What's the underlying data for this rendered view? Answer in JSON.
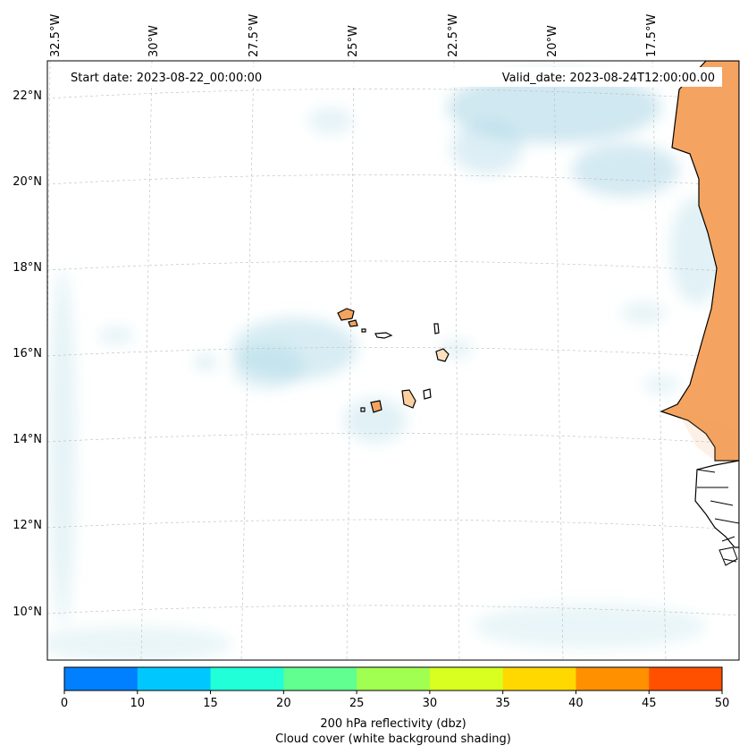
{
  "header": {
    "start_date": "Start date: 2023-08-22_00:00:00",
    "valid_date": "Valid_date: 2023-08-24T12:00:00.00"
  },
  "map": {
    "lon_labels": [
      "32.5°W",
      "30°W",
      "27.5°W",
      "25°W",
      "22.5°W",
      "20°W",
      "17.5°W"
    ],
    "lat_labels": [
      "22°N",
      "20°N",
      "18°N",
      "16°N",
      "14°N",
      "12°N",
      "10°N"
    ],
    "colors": {
      "land": "#f4a460",
      "cloud": "#a9d6e5",
      "coast": "#000000"
    }
  },
  "colorbar": {
    "ticks": [
      "0",
      "10",
      "15",
      "20",
      "25",
      "30",
      "35",
      "40",
      "45",
      "50"
    ],
    "colors": [
      "#0080ff",
      "#00c8ff",
      "#20ffd8",
      "#60ff90",
      "#a0ff50",
      "#d8ff20",
      "#ffd800",
      "#ff9000",
      "#ff5000"
    ],
    "label_line1": "200 hPa reflectivity (dbz)",
    "label_line2": "Cloud cover (white background shading)"
  }
}
